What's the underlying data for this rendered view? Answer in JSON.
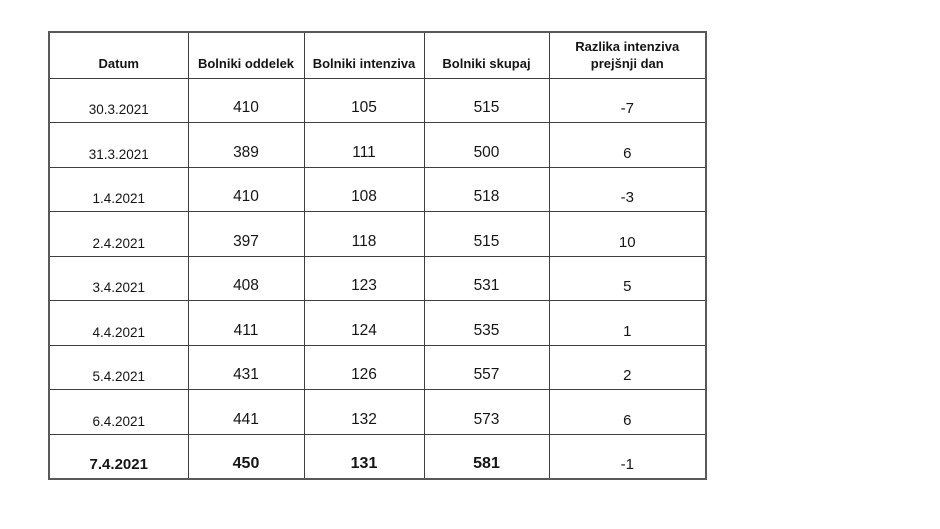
{
  "chart_data": {
    "type": "table",
    "columns": [
      "Datum",
      "Bolniki oddelek",
      "Bolniki intenziva",
      "Bolniki skupaj",
      "Razlika intenziva prejšnji dan"
    ],
    "rows": [
      [
        "30.3.2021",
        410,
        105,
        515,
        -7
      ],
      [
        "31.3.2021",
        389,
        111,
        500,
        6
      ],
      [
        "1.4.2021",
        410,
        108,
        518,
        -3
      ],
      [
        "2.4.2021",
        397,
        118,
        515,
        10
      ],
      [
        "3.4.2021",
        408,
        123,
        531,
        5
      ],
      [
        "4.4.2021",
        411,
        124,
        535,
        1
      ],
      [
        "5.4.2021",
        431,
        126,
        557,
        2
      ],
      [
        "6.4.2021",
        441,
        132,
        573,
        6
      ],
      [
        "7.4.2021",
        450,
        131,
        581,
        -1
      ]
    ],
    "bold_row_index": 8,
    "value_colors": {
      "oddelek": "#4472C4",
      "intenziva": "#ED7D31",
      "skupaj": "#70AD47",
      "border": "#595959",
      "grid": "#3f3f3f"
    },
    "legend_position": "none",
    "grid": true
  }
}
